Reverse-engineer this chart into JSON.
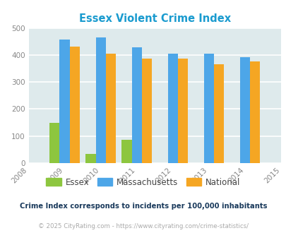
{
  "title": "Essex Violent Crime Index",
  "title_color": "#1a9bcf",
  "years": [
    2009,
    2010,
    2011,
    2012,
    2013,
    2014
  ],
  "essex": [
    150,
    35,
    87,
    0,
    0,
    0
  ],
  "massachusetts": [
    457,
    466,
    428,
    405,
    405,
    393
  ],
  "national": [
    430,
    404,
    386,
    387,
    366,
    375
  ],
  "essex_color": "#8dc63f",
  "massachusetts_color": "#4da6e8",
  "national_color": "#f5a623",
  "xlim": [
    2008,
    2015
  ],
  "ylim": [
    0,
    500
  ],
  "yticks": [
    0,
    100,
    200,
    300,
    400,
    500
  ],
  "bg_color": "#deeaec",
  "grid_color": "#ffffff",
  "bar_width": 0.28,
  "footnote1": "Crime Index corresponds to incidents per 100,000 inhabitants",
  "footnote2": "© 2025 CityRating.com - https://www.cityrating.com/crime-statistics/",
  "footnote1_color": "#1a3a5c",
  "footnote2_color": "#aaaaaa",
  "tick_label_color": "#888888",
  "legend_label_color": "#444444",
  "legend_labels": [
    "Essex",
    "Massachusetts",
    "National"
  ]
}
